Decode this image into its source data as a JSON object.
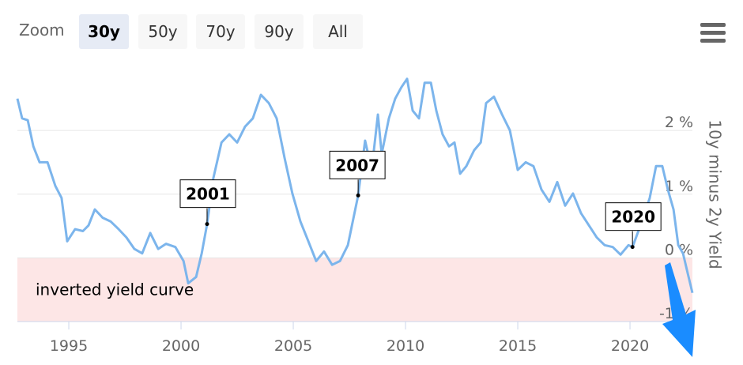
{
  "zoom": {
    "label": "Zoom",
    "buttons": [
      "30y",
      "50y",
      "70y",
      "90y",
      "All"
    ],
    "selected": 0
  },
  "chart_data": {
    "type": "line",
    "y_axis_title": "10y minus 2y Yield",
    "color": "#7cb5ec",
    "x": [
      1992.71,
      1992.92,
      1993.17,
      1993.42,
      1993.7,
      1994.05,
      1994.4,
      1994.68,
      1994.93,
      1995.28,
      1995.63,
      1995.88,
      1996.16,
      1996.51,
      1996.87,
      1997.22,
      1997.57,
      1997.92,
      1998.27,
      1998.63,
      1998.98,
      1999.33,
      1999.75,
      2000.11,
      2000.32,
      2000.67,
      2000.92,
      2001.16,
      2001.44,
      2001.8,
      2002.15,
      2002.5,
      2002.85,
      2003.2,
      2003.56,
      2003.91,
      2004.26,
      2004.61,
      2004.96,
      2005.32,
      2005.67,
      2006.02,
      2006.37,
      2006.73,
      2007.08,
      2007.43,
      2007.89,
      2008.2,
      2008.49,
      2008.77,
      2008.94,
      2009.26,
      2009.54,
      2009.82,
      2010.07,
      2010.32,
      2010.6,
      2010.85,
      2011.13,
      2011.37,
      2011.65,
      2011.94,
      2012.18,
      2012.43,
      2012.71,
      2013.06,
      2013.35,
      2013.59,
      2013.94,
      2014.3,
      2014.65,
      2015.0,
      2015.35,
      2015.7,
      2016.06,
      2016.41,
      2016.76,
      2017.11,
      2017.46,
      2017.82,
      2018.17,
      2018.52,
      2018.87,
      2019.23,
      2019.58,
      2019.93,
      2020.11,
      2020.53,
      2020.88,
      2021.16,
      2021.44,
      2021.69,
      2021.94,
      2022.15,
      2022.36,
      2022.57,
      2022.78
    ],
    "values": [
      2.5,
      2.19,
      2.16,
      1.75,
      1.5,
      1.5,
      1.13,
      0.94,
      0.26,
      0.45,
      0.42,
      0.51,
      0.76,
      0.63,
      0.57,
      0.45,
      0.32,
      0.14,
      0.07,
      0.39,
      0.14,
      0.22,
      0.17,
      -0.05,
      -0.4,
      -0.3,
      0.07,
      0.53,
      1.25,
      1.81,
      1.94,
      1.81,
      2.06,
      2.19,
      2.56,
      2.43,
      2.19,
      1.57,
      1.01,
      0.57,
      0.26,
      -0.05,
      0.1,
      -0.11,
      -0.05,
      0.2,
      0.98,
      1.84,
      1.38,
      2.25,
      1.63,
      2.19,
      2.5,
      2.68,
      2.81,
      2.31,
      2.19,
      2.75,
      2.75,
      2.31,
      1.94,
      1.75,
      1.81,
      1.32,
      1.44,
      1.69,
      1.81,
      2.43,
      2.53,
      2.25,
      2.0,
      1.38,
      1.5,
      1.44,
      1.07,
      0.88,
      1.19,
      0.82,
      1.01,
      0.7,
      0.51,
      0.32,
      0.2,
      0.17,
      0.05,
      0.2,
      0.17,
      0.57,
      0.94,
      1.44,
      1.44,
      1.07,
      0.76,
      0.2,
      0.07,
      -0.24,
      -0.55
    ],
    "xlim": [
      1992.71,
      2022.78
    ],
    "xticks": [
      1995,
      2000,
      2005,
      2010,
      2015,
      2020
    ],
    "ylim": [
      -1,
      3
    ],
    "yticks": [
      {
        "value": -1,
        "label": "-1 %"
      },
      {
        "value": 0,
        "label": "0 %"
      },
      {
        "value": 1,
        "label": "1 %"
      },
      {
        "value": 2,
        "label": "2 %"
      }
    ],
    "grid": true,
    "plot_band": {
      "from": -1,
      "to": 0,
      "label": "inverted yield curve",
      "color": "#fde6e6"
    },
    "annotations": [
      {
        "text": "2001",
        "x": 2001.16,
        "y": 0.53
      },
      {
        "text": "2007",
        "x": 2007.89,
        "y": 0.98
      },
      {
        "text": "2020",
        "x": 2020.11,
        "y": 0.17
      }
    ]
  }
}
